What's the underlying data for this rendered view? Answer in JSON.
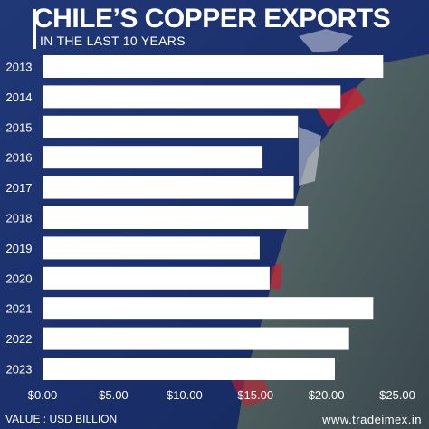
{
  "header": {
    "title": "CHILE’S COPPER EXPORTS",
    "subtitle": "IN THE LAST 10 YEARS"
  },
  "footer": {
    "value_note": "VALUE : USD BILLION",
    "website": "www.tradeimex.in"
  },
  "colors": {
    "background": "#1d2f66",
    "bar": "#ffffff",
    "text": "#ffffff",
    "flag_red": "#c8202f"
  },
  "chart_data": {
    "type": "bar",
    "orientation": "horizontal",
    "categories": [
      "2013",
      "2014",
      "2015",
      "2016",
      "2017",
      "2018",
      "2019",
      "2020",
      "2021",
      "2022",
      "2023"
    ],
    "values": [
      24.0,
      21.0,
      18.0,
      15.5,
      17.7,
      18.7,
      15.3,
      16.0,
      23.3,
      21.6,
      20.6
    ],
    "xlim": [
      0,
      25
    ],
    "x_ticks": [
      0,
      5,
      10,
      15,
      20,
      25
    ],
    "x_tick_labels": [
      "$0.00",
      "$5.00",
      "$10.00",
      "$15.00",
      "$20.00",
      "$25.00"
    ],
    "legend": "none",
    "grid": false
  }
}
